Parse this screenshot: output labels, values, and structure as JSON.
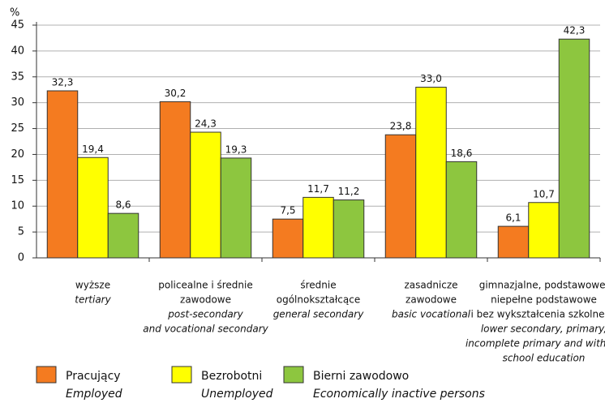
{
  "chart_data": {
    "type": "bar",
    "y_unit": "%",
    "categories": [
      {
        "pl": [
          "wyższe"
        ],
        "en": [
          "tertiary"
        ]
      },
      {
        "pl": [
          "policealne i średnie",
          "zawodowe"
        ],
        "en": [
          "post-secondary",
          "and vocational secondary"
        ]
      },
      {
        "pl": [
          "średnie",
          "ogólnokształcące"
        ],
        "en": [
          "general secondary"
        ]
      },
      {
        "pl": [
          "zasadnicze",
          "zawodowe"
        ],
        "en": [
          "basic vocational"
        ]
      },
      {
        "pl": [
          "gimnazjalne, podstawowe,",
          "niepełne podstawowe",
          "i bez wykształcenia szkolnego"
        ],
        "en": [
          "lower secondary, primary,",
          "incomplete primary and without",
          "school education"
        ]
      }
    ],
    "series": [
      {
        "name": "Pracujący",
        "name_en": "Employed",
        "color": "#f47b20",
        "values": [
          32.3,
          30.2,
          7.5,
          23.8,
          6.1
        ],
        "value_labels": [
          "32,3",
          "30,2",
          "7,5",
          "23,8",
          "6,1"
        ]
      },
      {
        "name": "Bezrobotni",
        "name_en": "Unemployed",
        "color": "#ffff00",
        "values": [
          19.4,
          24.3,
          11.7,
          33.0,
          10.7
        ],
        "value_labels": [
          "19,4",
          "24,3",
          "11,7",
          "33,0",
          "10,7"
        ]
      },
      {
        "name": "Bierni zawodowo",
        "name_en": "Economically inactive persons",
        "color": "#8dc63f",
        "values": [
          8.6,
          19.3,
          11.2,
          18.6,
          42.3
        ],
        "value_labels": [
          "8,6",
          "19,3",
          "11,2",
          "18,6",
          "42,3"
        ]
      }
    ],
    "ylim": [
      0,
      45
    ],
    "yticks": [
      0,
      5,
      10,
      15,
      20,
      25,
      30,
      35,
      40,
      45
    ],
    "grid": true
  }
}
